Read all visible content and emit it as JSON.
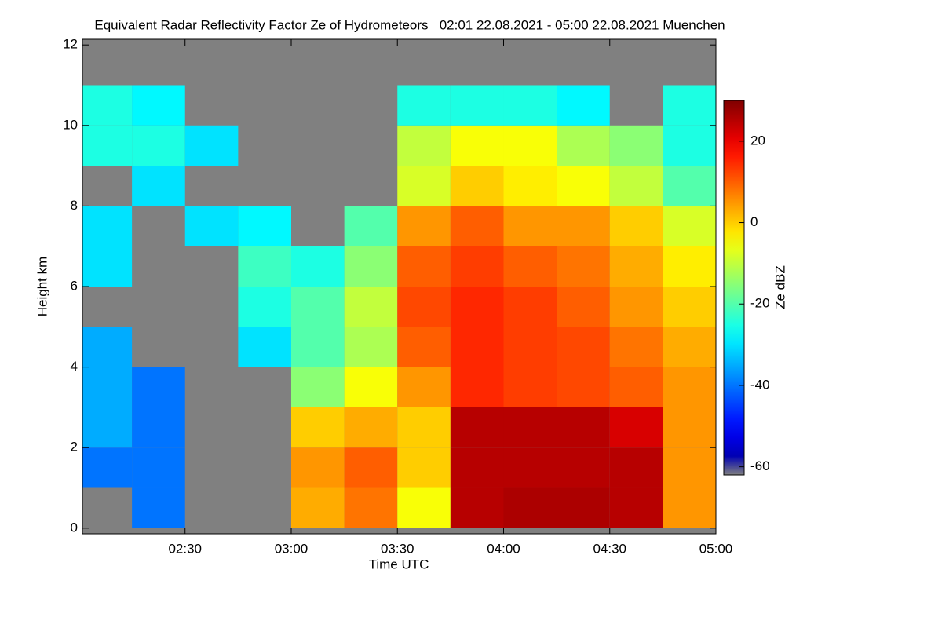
{
  "chart_data": {
    "type": "heatmap",
    "title": "Equivalent Radar Reflectivity Factor Ze of Hydrometeors   02:01 22.08.2021 - 05:00 22.08.2021 Muenchen",
    "x_label": "Time UTC",
    "y_label": "Height km",
    "colorbar_label": "Ze dBZ",
    "colormap": "jet",
    "background": "#808080",
    "xlim": [
      2.0167,
      5.0
    ],
    "xticks": [
      {
        "value": 2.5,
        "label": "02:30"
      },
      {
        "value": 3,
        "label": "03:00"
      },
      {
        "value": 3.5,
        "label": "03:30"
      },
      {
        "value": 4,
        "label": "04:00"
      },
      {
        "value": 4.5,
        "label": "04:30"
      },
      {
        "value": 5,
        "label": "05:00"
      }
    ],
    "ylim": [
      -0.14,
      12.14
    ],
    "yticks": [
      0,
      2,
      4,
      6,
      8,
      10,
      12
    ],
    "zlim": [
      -62,
      30
    ],
    "zticks": [
      -60,
      -40,
      -20,
      0,
      20
    ],
    "x": [
      2.125,
      2.375,
      2.625,
      2.875,
      3.125,
      3.375,
      3.625,
      3.875,
      4.125,
      4.375,
      4.625,
      4.875
    ],
    "y": [
      0.5,
      1.5,
      2.5,
      3.5,
      4.5,
      5.5,
      6.5,
      7.5,
      8.5,
      9.5,
      10.5,
      11.5
    ],
    "z": [
      [
        null,
        -40,
        null,
        null,
        3,
        8,
        -5,
        25,
        26,
        26,
        25,
        5
      ],
      [
        -40,
        -40,
        null,
        null,
        5,
        10,
        0,
        25,
        25,
        25,
        25,
        5
      ],
      [
        -35,
        -40,
        null,
        null,
        0,
        3,
        0,
        25,
        25,
        25,
        22,
        5
      ],
      [
        -35,
        -40,
        null,
        null,
        -15,
        -5,
        5,
        15,
        13,
        12,
        10,
        5
      ],
      [
        -35,
        null,
        null,
        -30,
        -20,
        -12,
        10,
        15,
        13,
        12,
        8,
        3
      ],
      [
        null,
        null,
        null,
        -25,
        -20,
        -10,
        12,
        15,
        13,
        10,
        5,
        0
      ],
      [
        -30,
        null,
        null,
        -22,
        -25,
        -15,
        10,
        13,
        10,
        8,
        3,
        -3
      ],
      [
        -30,
        null,
        -30,
        -28,
        null,
        -20,
        5,
        10,
        5,
        5,
        0,
        -8
      ],
      [
        null,
        -30,
        null,
        null,
        null,
        null,
        -8,
        0,
        -3,
        -5,
        -10,
        -20
      ],
      [
        -25,
        -25,
        -30,
        null,
        null,
        null,
        -10,
        -5,
        -5,
        -12,
        -15,
        -25
      ],
      [
        -25,
        -28,
        null,
        null,
        null,
        null,
        -25,
        -25,
        -25,
        -28,
        null,
        -25
      ],
      [
        null,
        null,
        null,
        null,
        null,
        null,
        null,
        null,
        null,
        null,
        null,
        null
      ]
    ]
  }
}
